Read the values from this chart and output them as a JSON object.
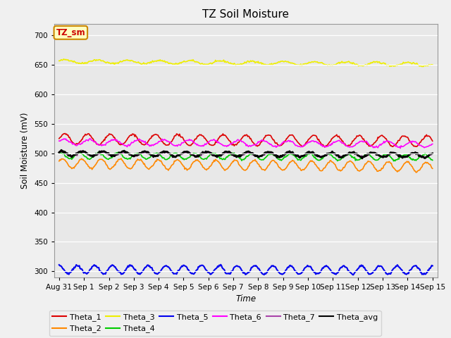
{
  "title": "TZ Soil Moisture",
  "xlabel": "Time",
  "ylabel": "Soil Moisture (mV)",
  "legend_label": "TZ_sm",
  "ylim": [
    290,
    720
  ],
  "yticks": [
    300,
    350,
    400,
    450,
    500,
    550,
    600,
    650,
    700
  ],
  "background_color": "#e8e8e8",
  "fig_facecolor": "#f0f0f0",
  "series": {
    "Theta_1": {
      "color": "#dd0000",
      "base": 524,
      "amplitude": 9,
      "freq": 1.1,
      "trend": -3.5,
      "phase": 0.0,
      "lw": 1.2
    },
    "Theta_2": {
      "color": "#ff8800",
      "base": 483,
      "amplitude": 8,
      "freq": 1.3,
      "trend": -6.0,
      "phase": 0.4,
      "lw": 1.2
    },
    "Theta_3": {
      "color": "#eeee00",
      "base": 656,
      "amplitude": 3,
      "freq": 0.8,
      "trend": -5.0,
      "phase": 0.2,
      "lw": 1.2
    },
    "Theta_4": {
      "color": "#00cc00",
      "base": 496,
      "amplitude": 5,
      "freq": 1.3,
      "trend": -3.0,
      "phase": 1.1,
      "lw": 1.2
    },
    "Theta_5": {
      "color": "#0000ee",
      "base": 303,
      "amplitude": 7,
      "freq": 1.4,
      "trend": -1.0,
      "phase": 1.5,
      "lw": 1.5
    },
    "Theta_6": {
      "color": "#ff00ff",
      "base": 519,
      "amplitude": 5,
      "freq": 1.0,
      "trend": -4.0,
      "phase": 0.3,
      "lw": 1.2
    },
    "Theta_7": {
      "color": "#aa44aa",
      "base": 499,
      "amplitude": 3,
      "freq": 1.2,
      "trend": -2.0,
      "phase": 0.7,
      "lw": 1.2
    },
    "Theta_avg": {
      "color": "#000000",
      "base": 500,
      "amplitude": 4,
      "freq": 1.2,
      "trend": -3.0,
      "phase": 0.9,
      "lw": 2.0
    }
  },
  "series_order": [
    "Theta_3",
    "Theta_2",
    "Theta_1",
    "Theta_6",
    "Theta_7",
    "Theta_4",
    "Theta_avg",
    "Theta_5"
  ],
  "legend_order": [
    "Theta_1",
    "Theta_2",
    "Theta_3",
    "Theta_4",
    "Theta_5",
    "Theta_6",
    "Theta_7",
    "Theta_avg"
  ],
  "x_tick_labels": [
    "Aug 31",
    "Sep 1",
    "Sep 2",
    "Sep 3",
    "Sep 4",
    "Sep 5",
    "Sep 6",
    "Sep 7",
    "Sep 8",
    "Sep 9",
    "Sep 10",
    "Sep 11",
    "Sep 12",
    "Sep 13",
    "Sep 14",
    "Sep 15"
  ],
  "x_tick_positions": [
    0,
    1,
    2,
    3,
    4,
    5,
    6,
    7,
    8,
    9,
    10,
    11,
    12,
    13,
    14,
    15
  ]
}
